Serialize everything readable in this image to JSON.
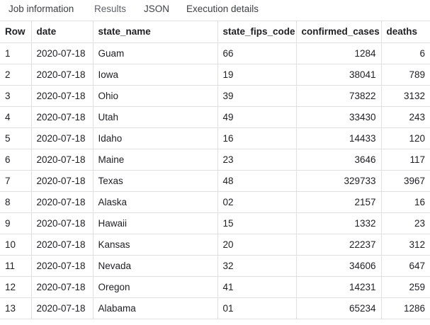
{
  "tabs": [
    {
      "label": "Job information"
    },
    {
      "label": "Results",
      "active": true
    },
    {
      "label": "JSON"
    },
    {
      "label": "Execution details"
    }
  ],
  "table": {
    "columns": [
      "Row",
      "date",
      "state_name",
      "state_fips_code",
      "confirmed_cases",
      "deaths"
    ],
    "rows": [
      [
        "1",
        "2020-07-18",
        "Guam",
        "66",
        "1284",
        "6"
      ],
      [
        "2",
        "2020-07-18",
        "Iowa",
        "19",
        "38041",
        "789"
      ],
      [
        "3",
        "2020-07-18",
        "Ohio",
        "39",
        "73822",
        "3132"
      ],
      [
        "4",
        "2020-07-18",
        "Utah",
        "49",
        "33430",
        "243"
      ],
      [
        "5",
        "2020-07-18",
        "Idaho",
        "16",
        "14433",
        "120"
      ],
      [
        "6",
        "2020-07-18",
        "Maine",
        "23",
        "3646",
        "117"
      ],
      [
        "7",
        "2020-07-18",
        "Texas",
        "48",
        "329733",
        "3967"
      ],
      [
        "8",
        "2020-07-18",
        "Alaska",
        "02",
        "2157",
        "16"
      ],
      [
        "9",
        "2020-07-18",
        "Hawaii",
        "15",
        "1332",
        "23"
      ],
      [
        "10",
        "2020-07-18",
        "Kansas",
        "20",
        "22237",
        "312"
      ],
      [
        "11",
        "2020-07-18",
        "Nevada",
        "32",
        "34606",
        "647"
      ],
      [
        "12",
        "2020-07-18",
        "Oregon",
        "41",
        "14231",
        "259"
      ],
      [
        "13",
        "2020-07-18",
        "Alabama",
        "01",
        "65234",
        "1286"
      ]
    ]
  }
}
